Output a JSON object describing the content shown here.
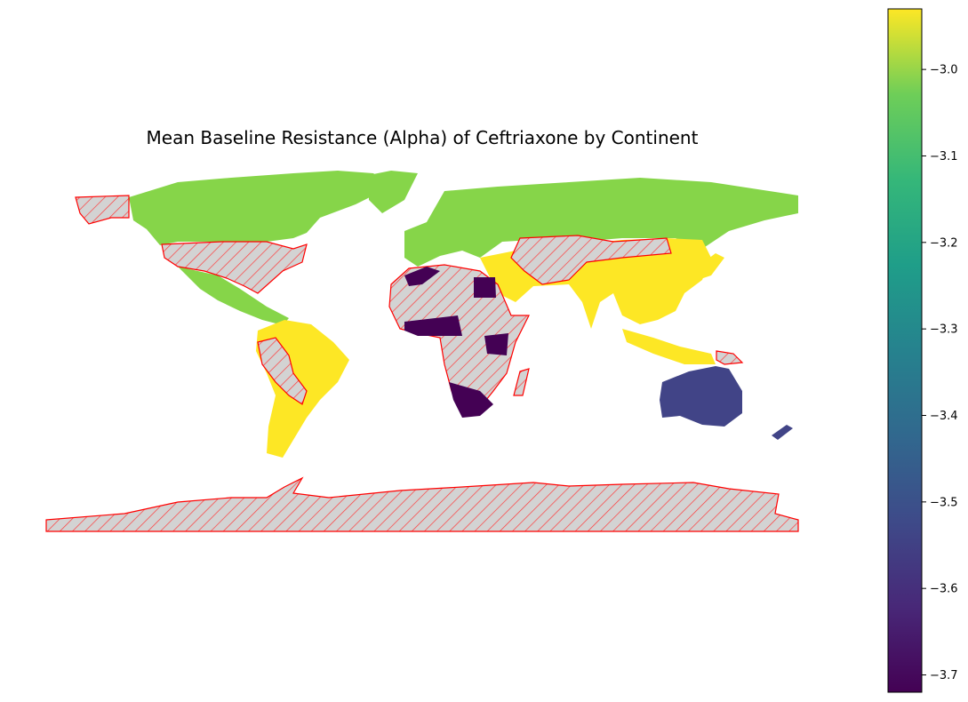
{
  "title": "Mean Baseline Resistance (Alpha) of Ceftriaxone by Continent",
  "colorbar": {
    "colormap": "viridis",
    "vmin": -3.72,
    "vmax": -2.93,
    "ticks": [
      {
        "value": -3.0,
        "label": "−3.0"
      },
      {
        "value": -3.1,
        "label": "−3.1"
      },
      {
        "value": -3.2,
        "label": "−3.2"
      },
      {
        "value": -3.3,
        "label": "−3.3"
      },
      {
        "value": -3.4,
        "label": "−3.4"
      },
      {
        "value": -3.5,
        "label": "−3.5"
      },
      {
        "value": -3.6,
        "label": "−3.6"
      },
      {
        "value": -3.7,
        "label": "−3.7"
      }
    ]
  },
  "regions": [
    {
      "name": "North America",
      "value": -3.11,
      "color": "#86d549"
    },
    {
      "name": "Europe",
      "value": -3.11,
      "color": "#86d549"
    },
    {
      "name": "Asia",
      "value": -2.93,
      "color": "#fde725"
    },
    {
      "name": "South America",
      "value": -2.93,
      "color": "#fde725"
    },
    {
      "name": "Africa",
      "value": -3.72,
      "color": "#440154"
    },
    {
      "name": "Oceania",
      "value": -3.59,
      "color": "#414487"
    }
  ],
  "missing_data_style": {
    "fill": "#d3d3d3",
    "hatch": "///",
    "edge_color": "#ff0000"
  }
}
